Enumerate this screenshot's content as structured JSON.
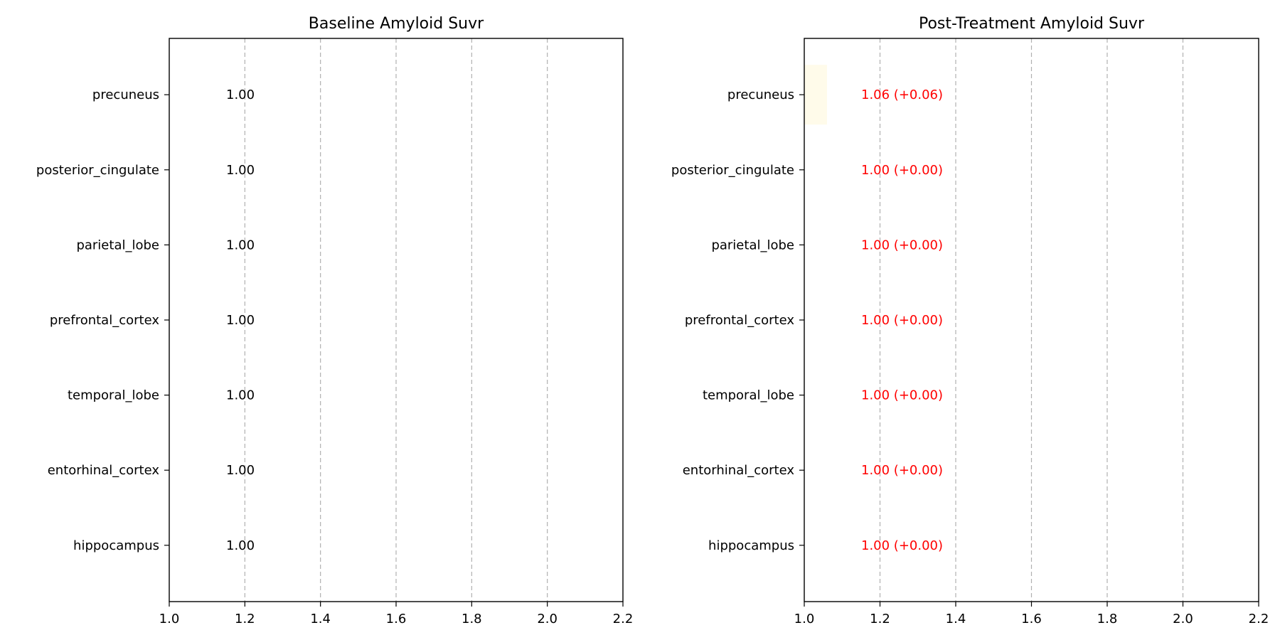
{
  "chart_data": [
    {
      "type": "bar",
      "orientation": "horizontal",
      "title": "Baseline Amyloid Suvr",
      "xlabel": "",
      "ylabel": "",
      "xlim": [
        1.0,
        2.2
      ],
      "xticks": [
        "1.0",
        "1.2",
        "1.4",
        "1.6",
        "1.8",
        "2.0",
        "2.2"
      ],
      "xtick_values": [
        1.0,
        1.2,
        1.4,
        1.6,
        1.8,
        2.0,
        2.2
      ],
      "grid": "x, dashed",
      "categories": [
        "precuneus",
        "posterior_cingulate",
        "parietal_lobe",
        "prefrontal_cortex",
        "temporal_lobe",
        "entorhinal_cortex",
        "hippocampus"
      ],
      "values": [
        1.0,
        1.0,
        1.0,
        1.0,
        1.0,
        1.0,
        1.0
      ],
      "value_labels": [
        "1.00",
        "1.00",
        "1.00",
        "1.00",
        "1.00",
        "1.00",
        "1.00"
      ],
      "bar_color": "#fffde8",
      "label_color": "#000000"
    },
    {
      "type": "bar",
      "orientation": "horizontal",
      "title": "Post-Treatment Amyloid Suvr",
      "xlabel": "",
      "ylabel": "",
      "xlim": [
        1.0,
        2.2
      ],
      "xticks": [
        "1.0",
        "1.2",
        "1.4",
        "1.6",
        "1.8",
        "2.0",
        "2.2"
      ],
      "xtick_values": [
        1.0,
        1.2,
        1.4,
        1.6,
        1.8,
        2.0,
        2.2
      ],
      "grid": "x, dashed",
      "categories": [
        "precuneus",
        "posterior_cingulate",
        "parietal_lobe",
        "prefrontal_cortex",
        "temporal_lobe",
        "entorhinal_cortex",
        "hippocampus"
      ],
      "values": [
        1.06,
        1.0,
        1.0,
        1.0,
        1.0,
        1.0,
        1.0
      ],
      "value_labels": [
        "1.06 (+0.06)",
        "1.00 (+0.00)",
        "1.00 (+0.00)",
        "1.00 (+0.00)",
        "1.00 (+0.00)",
        "1.00 (+0.00)",
        "1.00 (+0.00)"
      ],
      "bar_color": "#fffbea",
      "label_color": "#ff0000"
    }
  ]
}
